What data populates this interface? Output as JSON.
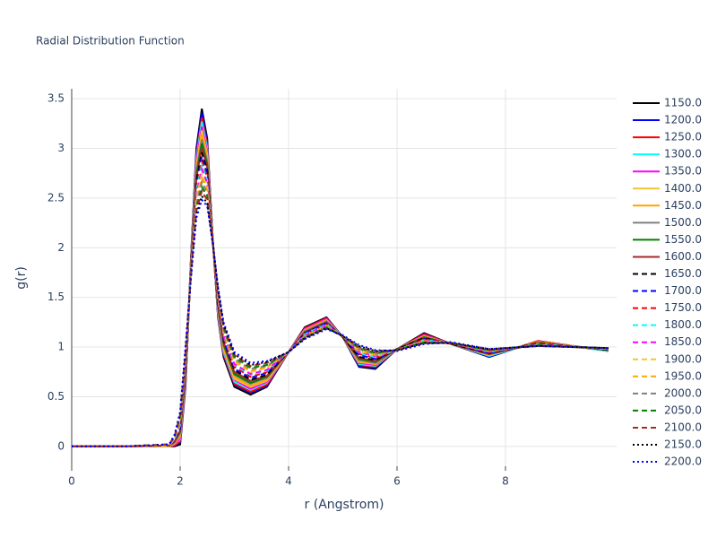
{
  "chart_data": {
    "type": "line",
    "title": "Radial Distribution Function",
    "x_label": "r (Angstrom)",
    "y_label": "g(r)",
    "xlim": [
      0,
      10.05
    ],
    "ylim": [
      -0.2,
      3.6
    ],
    "xticks": [
      0,
      2,
      4,
      6,
      8
    ],
    "yticks": [
      0,
      0.5,
      1,
      1.5,
      2,
      2.5,
      3,
      3.5
    ],
    "grid": true,
    "x": [
      0,
      1,
      1.8,
      1.9,
      2.0,
      2.1,
      2.2,
      2.3,
      2.4,
      2.5,
      2.6,
      2.7,
      2.8,
      3.0,
      3.3,
      3.6,
      4.0,
      4.3,
      4.7,
      5.0,
      5.3,
      5.6,
      6.0,
      6.5,
      7.0,
      7.7,
      8.6,
      9.9
    ],
    "series": [
      {
        "name": "1150.0",
        "color": "black",
        "dash": "solid",
        "values": [
          0,
          0,
          0,
          0,
          0.02,
          0.6,
          1.9,
          3.0,
          3.4,
          3.1,
          2.1,
          1.3,
          0.9,
          0.6,
          0.52,
          0.6,
          0.95,
          1.2,
          1.3,
          1.1,
          0.8,
          0.78,
          0.98,
          1.14,
          1.03,
          0.9,
          1.06,
          0.96
        ]
      },
      {
        "name": "1200.0",
        "color": "blue",
        "dash": "solid",
        "values": [
          0,
          0,
          0,
          0.01,
          0.04,
          0.62,
          1.89,
          2.97,
          3.36,
          3.07,
          2.1,
          1.31,
          0.92,
          0.62,
          0.54,
          0.61,
          0.95,
          1.19,
          1.29,
          1.1,
          0.81,
          0.79,
          0.98,
          1.13,
          1.03,
          0.9,
          1.06,
          0.96
        ]
      },
      {
        "name": "1250.0",
        "color": "red",
        "dash": "solid",
        "values": [
          0,
          0,
          0,
          0.01,
          0.05,
          0.64,
          1.88,
          2.93,
          3.31,
          3.04,
          2.1,
          1.33,
          0.93,
          0.63,
          0.55,
          0.62,
          0.95,
          1.19,
          1.29,
          1.1,
          0.82,
          0.8,
          0.98,
          1.13,
          1.03,
          0.91,
          1.06,
          0.96
        ]
      },
      {
        "name": "1300.0",
        "color": "cyan",
        "dash": "solid",
        "values": [
          0,
          0,
          0,
          0.02,
          0.07,
          0.66,
          1.87,
          2.9,
          3.27,
          3.0,
          2.09,
          1.34,
          0.95,
          0.65,
          0.57,
          0.64,
          0.95,
          1.18,
          1.28,
          1.1,
          0.83,
          0.81,
          0.98,
          1.12,
          1.03,
          0.91,
          1.05,
          0.96
        ]
      },
      {
        "name": "1350.0",
        "color": "magenta",
        "dash": "solid",
        "values": [
          0,
          0,
          0,
          0.02,
          0.08,
          0.68,
          1.86,
          2.87,
          3.22,
          2.97,
          2.09,
          1.36,
          0.97,
          0.67,
          0.58,
          0.65,
          0.95,
          1.18,
          1.28,
          1.1,
          0.84,
          0.82,
          0.98,
          1.12,
          1.03,
          0.92,
          1.05,
          0.97
        ]
      },
      {
        "name": "1400.0",
        "color": "#f5c431",
        "dash": "solid",
        "values": [
          0,
          0,
          0,
          0.03,
          0.1,
          0.7,
          1.85,
          2.83,
          3.18,
          2.94,
          2.09,
          1.37,
          0.98,
          0.68,
          0.6,
          0.66,
          0.95,
          1.17,
          1.27,
          1.1,
          0.85,
          0.83,
          0.98,
          1.11,
          1.03,
          0.92,
          1.05,
          0.97
        ]
      },
      {
        "name": "1450.0",
        "color": "orange",
        "dash": "solid",
        "values": [
          0,
          0,
          0.01,
          0.03,
          0.11,
          0.71,
          1.84,
          2.8,
          3.14,
          2.91,
          2.09,
          1.39,
          1.0,
          0.7,
          0.61,
          0.67,
          0.95,
          1.17,
          1.27,
          1.1,
          0.86,
          0.83,
          0.98,
          1.11,
          1.03,
          0.92,
          1.05,
          0.97
        ]
      },
      {
        "name": "1500.0",
        "color": "gray",
        "dash": "solid",
        "values": [
          0,
          0,
          0.01,
          0.04,
          0.13,
          0.73,
          1.83,
          2.77,
          3.09,
          2.87,
          2.08,
          1.4,
          1.02,
          0.72,
          0.63,
          0.69,
          0.95,
          1.16,
          1.26,
          1.1,
          0.87,
          0.84,
          0.98,
          1.1,
          1.03,
          0.93,
          1.04,
          0.97
        ]
      },
      {
        "name": "1550.0",
        "color": "green",
        "dash": "solid",
        "values": [
          0,
          0,
          0.01,
          0.05,
          0.15,
          0.75,
          1.82,
          2.73,
          3.05,
          2.84,
          2.08,
          1.41,
          1.03,
          0.73,
          0.64,
          0.7,
          0.95,
          1.15,
          1.25,
          1.1,
          0.88,
          0.85,
          0.98,
          1.1,
          1.03,
          0.93,
          1.04,
          0.97
        ]
      },
      {
        "name": "1600.0",
        "color": "#a52a2a",
        "dash": "solid",
        "values": [
          0,
          0,
          0.01,
          0.05,
          0.16,
          0.77,
          1.81,
          2.7,
          3.01,
          2.81,
          2.08,
          1.43,
          1.05,
          0.75,
          0.66,
          0.71,
          0.95,
          1.15,
          1.25,
          1.1,
          0.89,
          0.86,
          0.98,
          1.09,
          1.03,
          0.93,
          1.04,
          0.97
        ]
      },
      {
        "name": "1650.0",
        "color": "black",
        "dash": "dash",
        "values": [
          0,
          0,
          0.01,
          0.06,
          0.18,
          0.79,
          1.8,
          2.67,
          2.96,
          2.78,
          2.08,
          1.44,
          1.07,
          0.77,
          0.67,
          0.72,
          0.95,
          1.14,
          1.24,
          1.1,
          0.9,
          0.87,
          0.98,
          1.09,
          1.03,
          0.94,
          1.04,
          0.97
        ]
      },
      {
        "name": "1700.0",
        "color": "blue",
        "dash": "dash",
        "values": [
          0,
          0,
          0.01,
          0.06,
          0.19,
          0.81,
          1.8,
          2.63,
          2.92,
          2.74,
          2.07,
          1.46,
          1.08,
          0.78,
          0.69,
          0.74,
          0.95,
          1.14,
          1.24,
          1.11,
          0.92,
          0.88,
          0.97,
          1.08,
          1.04,
          0.94,
          1.03,
          0.98
        ]
      },
      {
        "name": "1750.0",
        "color": "red",
        "dash": "dash",
        "values": [
          0,
          0,
          0.01,
          0.07,
          0.21,
          0.83,
          1.79,
          2.6,
          2.87,
          2.71,
          2.07,
          1.47,
          1.1,
          0.8,
          0.7,
          0.75,
          0.95,
          1.13,
          1.23,
          1.11,
          0.93,
          0.89,
          0.97,
          1.08,
          1.04,
          0.95,
          1.03,
          0.98
        ]
      },
      {
        "name": "1800.0",
        "color": "cyan",
        "dash": "dash",
        "values": [
          0,
          0,
          0.01,
          0.07,
          0.22,
          0.85,
          1.78,
          2.57,
          2.83,
          2.68,
          2.07,
          1.49,
          1.12,
          0.82,
          0.72,
          0.76,
          0.95,
          1.13,
          1.23,
          1.11,
          0.94,
          0.9,
          0.97,
          1.07,
          1.04,
          0.95,
          1.03,
          0.98
        ]
      },
      {
        "name": "1850.0",
        "color": "magenta",
        "dash": "dash",
        "values": [
          0,
          0,
          0.01,
          0.08,
          0.24,
          0.87,
          1.77,
          2.53,
          2.79,
          2.65,
          2.07,
          1.5,
          1.13,
          0.83,
          0.73,
          0.77,
          0.95,
          1.12,
          1.22,
          1.11,
          0.95,
          0.91,
          0.97,
          1.07,
          1.04,
          0.95,
          1.03,
          0.98
        ]
      },
      {
        "name": "1900.0",
        "color": "#f5c431",
        "dash": "dash",
        "values": [
          0,
          0,
          0.01,
          0.09,
          0.26,
          0.89,
          1.76,
          2.5,
          2.74,
          2.61,
          2.06,
          1.51,
          1.15,
          0.85,
          0.75,
          0.79,
          0.95,
          1.11,
          1.21,
          1.11,
          0.96,
          0.92,
          0.97,
          1.06,
          1.04,
          0.96,
          1.02,
          0.98
        ]
      },
      {
        "name": "1950.0",
        "color": "orange",
        "dash": "dash",
        "values": [
          0,
          0,
          0.02,
          0.09,
          0.27,
          0.9,
          1.75,
          2.47,
          2.7,
          2.58,
          2.06,
          1.53,
          1.17,
          0.87,
          0.76,
          0.8,
          0.95,
          1.11,
          1.21,
          1.11,
          0.97,
          0.92,
          0.97,
          1.06,
          1.04,
          0.96,
          1.02,
          0.98
        ]
      },
      {
        "name": "2000.0",
        "color": "gray",
        "dash": "dash",
        "values": [
          0,
          0,
          0.02,
          0.1,
          0.29,
          0.92,
          1.74,
          2.43,
          2.66,
          2.55,
          2.06,
          1.54,
          1.18,
          0.88,
          0.78,
          0.81,
          0.95,
          1.1,
          1.2,
          1.11,
          0.98,
          0.93,
          0.97,
          1.05,
          1.04,
          0.96,
          1.02,
          0.98
        ]
      },
      {
        "name": "2050.0",
        "color": "green",
        "dash": "dash",
        "values": [
          0,
          0,
          0.02,
          0.1,
          0.3,
          0.94,
          1.73,
          2.4,
          2.61,
          2.52,
          2.06,
          1.56,
          1.2,
          0.9,
          0.79,
          0.82,
          0.95,
          1.1,
          1.2,
          1.11,
          0.99,
          0.94,
          0.97,
          1.05,
          1.04,
          0.97,
          1.02,
          0.99
        ]
      },
      {
        "name": "2100.0",
        "color": "#a52a2a",
        "dash": "dash",
        "values": [
          0,
          0,
          0.02,
          0.11,
          0.32,
          0.96,
          1.72,
          2.37,
          2.57,
          2.48,
          2.05,
          1.57,
          1.22,
          0.92,
          0.81,
          0.84,
          0.95,
          1.09,
          1.19,
          1.11,
          1.0,
          0.95,
          0.97,
          1.04,
          1.04,
          0.97,
          1.01,
          0.99
        ]
      },
      {
        "name": "2150.0",
        "color": "black",
        "dash": "dot",
        "values": [
          0,
          0,
          0.02,
          0.11,
          0.33,
          0.98,
          1.71,
          2.33,
          2.52,
          2.45,
          2.05,
          1.59,
          1.23,
          0.93,
          0.82,
          0.85,
          0.95,
          1.09,
          1.19,
          1.11,
          1.01,
          0.96,
          0.97,
          1.04,
          1.04,
          0.98,
          1.01,
          0.99
        ]
      },
      {
        "name": "2200.0",
        "color": "blue",
        "dash": "dot",
        "values": [
          0,
          0,
          0.02,
          0.12,
          0.35,
          1.0,
          1.7,
          2.3,
          2.48,
          2.42,
          2.05,
          1.6,
          1.25,
          0.95,
          0.84,
          0.86,
          0.95,
          1.08,
          1.18,
          1.12,
          1.02,
          0.97,
          0.96,
          1.03,
          1.05,
          0.98,
          1.01,
          0.99
        ]
      }
    ]
  }
}
